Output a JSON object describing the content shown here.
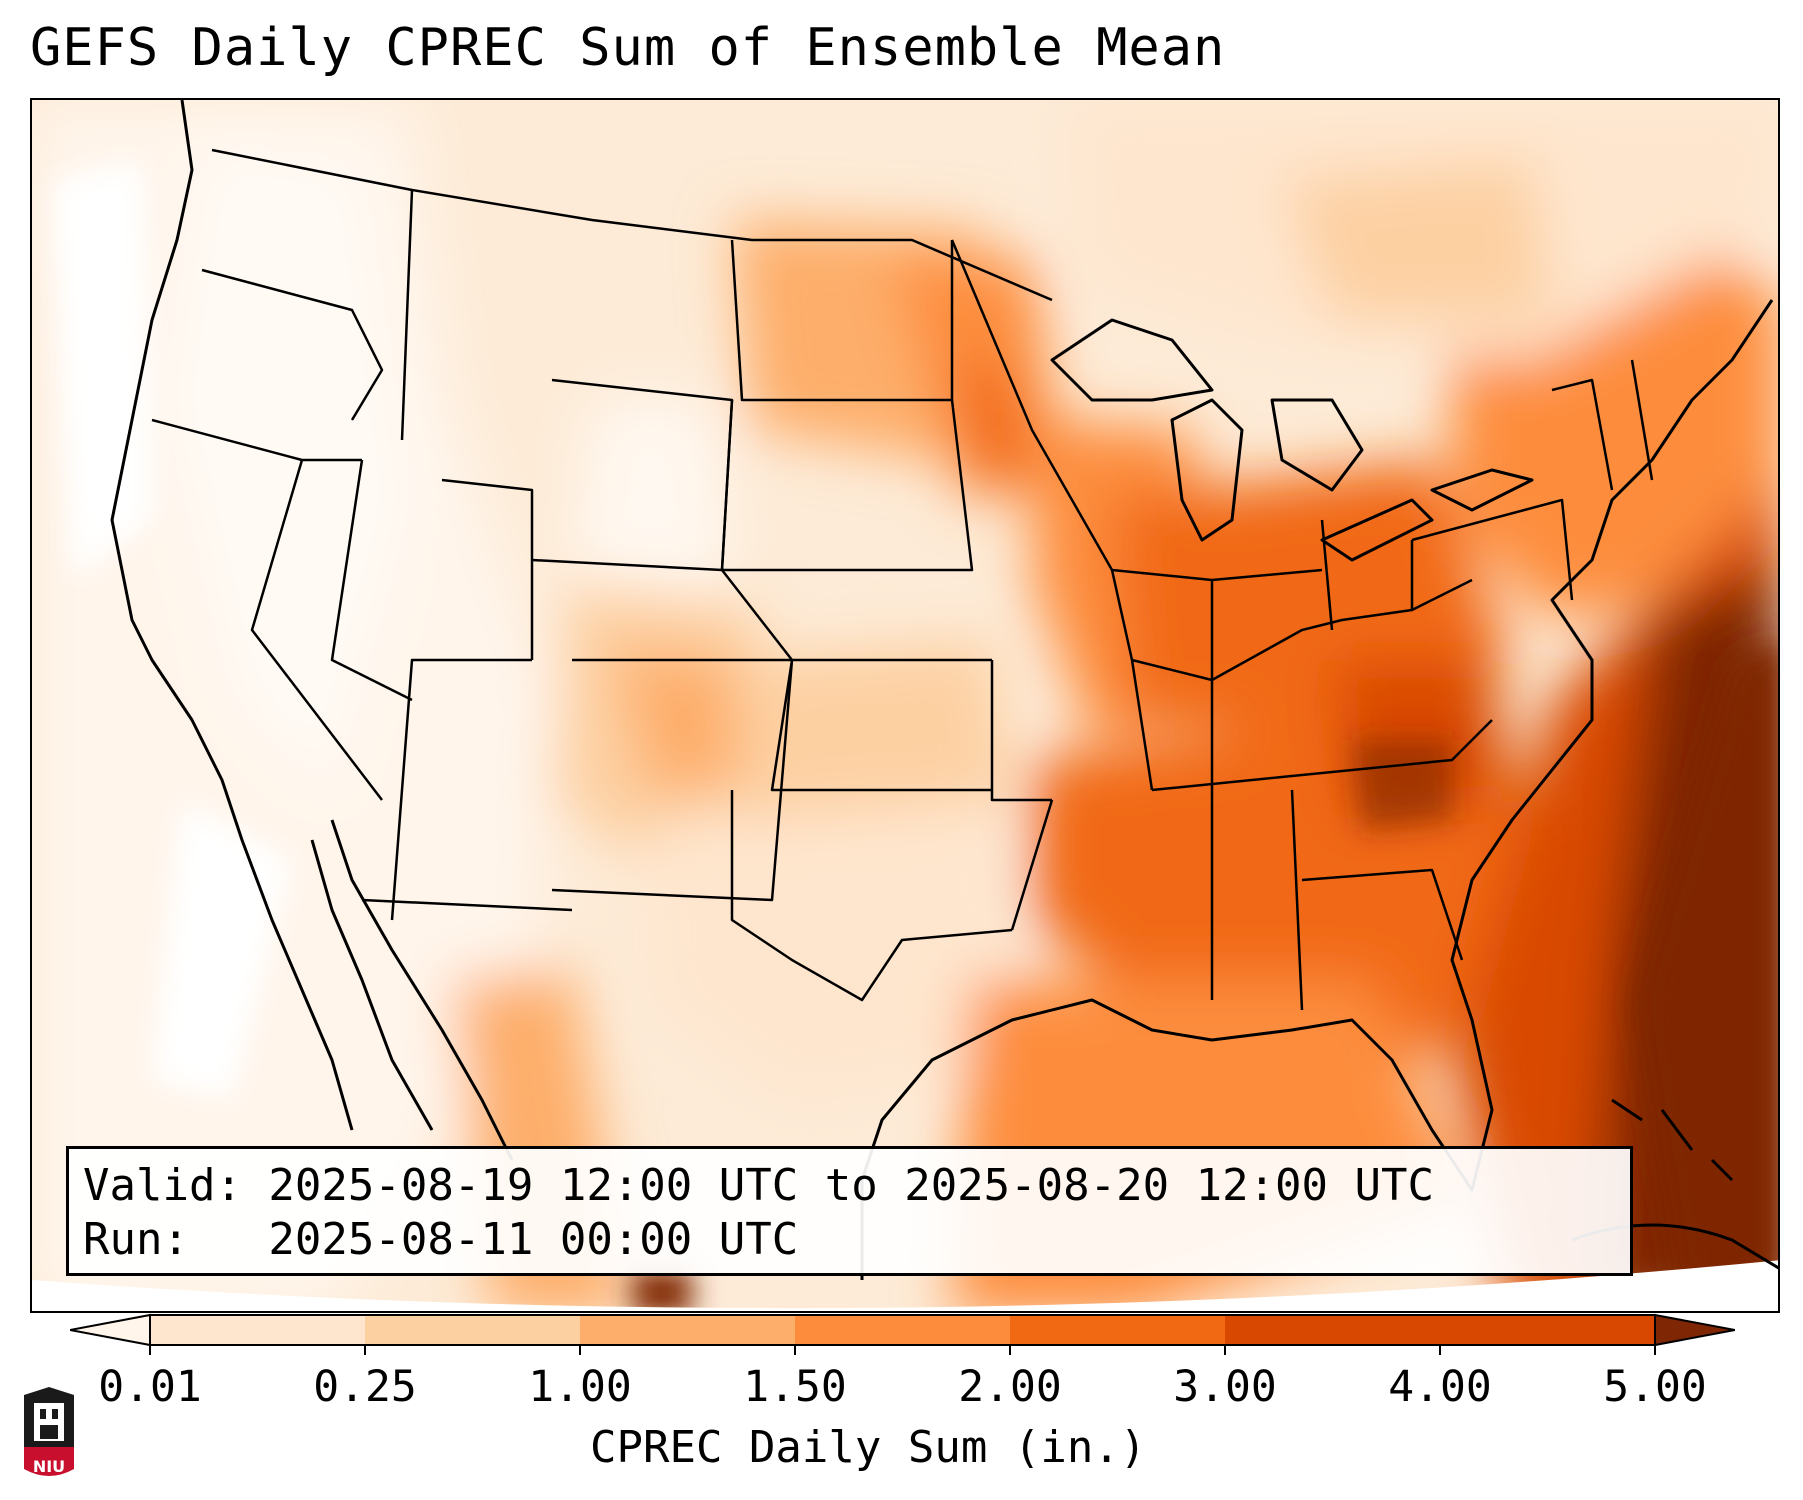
{
  "title": "GEFS Daily CPREC Sum of Ensemble Mean",
  "info": {
    "valid_line": "Valid: 2025-08-19 12:00 UTC to 2025-08-20 12:00 UTC",
    "run_line": "Run:   2025-08-11 00:00 UTC"
  },
  "colorbar": {
    "label": "CPREC Daily Sum (in.)",
    "ticks": [
      "0.01",
      "0.25",
      "1.00",
      "1.50",
      "2.00",
      "3.00",
      "4.00",
      "5.00"
    ],
    "colors": [
      "#fff5eb",
      "#fee6ce",
      "#fdd0a2",
      "#fdae6b",
      "#fd8d3c",
      "#f16913",
      "#d94801",
      "#7f2704"
    ],
    "extend": "both"
  },
  "logo": {
    "text": "NIU",
    "color": "#c8102e"
  }
}
